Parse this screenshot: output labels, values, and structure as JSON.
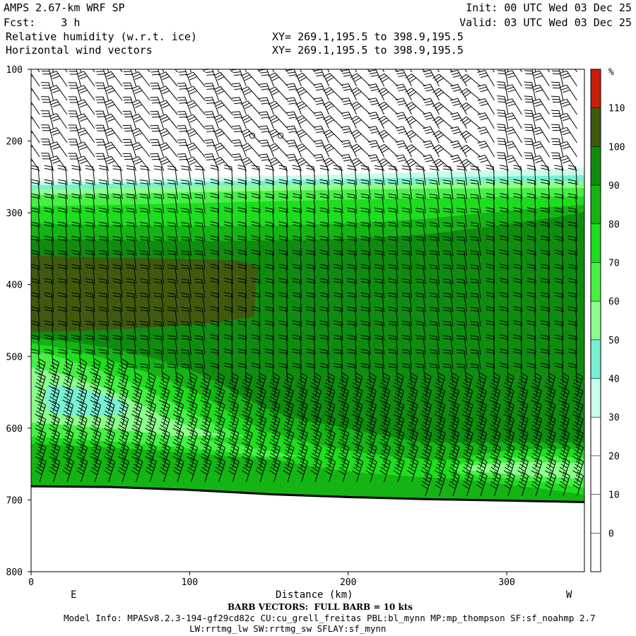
{
  "header": {
    "title": "AMPS 2.67-km WRF SP",
    "init": "Init: 00 UTC Wed 03 Dec 25",
    "fcst": "Fcst:    3 h",
    "valid": "Valid: 03 UTC Wed 03 Dec 25",
    "field1": "Relative humidity (w.r.t. ice)",
    "field2": "Horizontal wind vectors",
    "xy1": "XY= 269.1,195.5 to 398.9,195.5",
    "xy2": "XY= 269.1,195.5 to 398.9,195.5"
  },
  "footer": {
    "barb_note": "BARB VECTORS:  FULL BARB = 10 kts",
    "model_info": "Model Info: MPASv8.2.3-194-gf29cd82c CU:cu_grell_freitas PBL:bl_mynn MP:mp_thompson SF:sf_noahmp 2.7",
    "model_info2": "LW:rrtmg_lw SW:rrtmg_sw SFLAY:sf_mynn"
  },
  "chart_data": {
    "type": "heatmap",
    "xlabel": "Distance (km)",
    "ylabel": "",
    "x_range": [
      0,
      349
    ],
    "y_range": [
      800,
      100
    ],
    "x_ticks": [
      0,
      100,
      200,
      300
    ],
    "y_ticks": [
      100,
      200,
      300,
      400,
      500,
      600,
      700,
      800
    ],
    "x_endpoint_labels": {
      "left": "E",
      "right": "W"
    },
    "colorbar": {
      "unit": "%",
      "levels": [
        0,
        10,
        20,
        30,
        40,
        50,
        60,
        70,
        80,
        90,
        100,
        110
      ],
      "colors": [
        "#ffffff",
        "#ffffff",
        "#ffffff",
        "#ffffff",
        "#c8ffe8",
        "#78f0d2",
        "#8cff8c",
        "#46f046",
        "#1edc1e",
        "#14b414",
        "#0f8c0f",
        "#3f5a0f",
        "#c81e0a"
      ]
    },
    "terrain_pressure": [
      {
        "x": 0,
        "p": 681
      },
      {
        "x": 50,
        "p": 682
      },
      {
        "x": 100,
        "p": 686
      },
      {
        "x": 150,
        "p": 692
      },
      {
        "x": 200,
        "p": 696
      },
      {
        "x": 250,
        "p": 699
      },
      {
        "x": 300,
        "p": 701
      },
      {
        "x": 349,
        "p": 703
      }
    ]
  }
}
